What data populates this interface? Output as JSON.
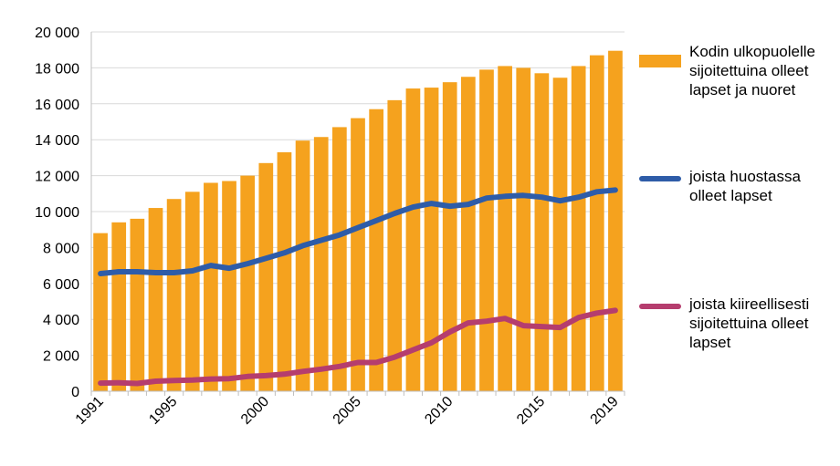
{
  "chart_data": {
    "type": "bar",
    "title": "",
    "xlabel": "",
    "ylabel": "",
    "ylim": [
      0,
      20000
    ],
    "yticks": [
      0,
      2000,
      4000,
      6000,
      8000,
      10000,
      12000,
      14000,
      16000,
      18000,
      20000
    ],
    "ytick_labels": [
      "0",
      "2 000",
      "4 000",
      "6 000",
      "8 000",
      "10 000",
      "12 000",
      "14 000",
      "16 000",
      "18 000",
      "20 000"
    ],
    "categories": [
      1991,
      1992,
      1993,
      1994,
      1995,
      1996,
      1997,
      1998,
      1999,
      2000,
      2001,
      2002,
      2003,
      2004,
      2005,
      2006,
      2007,
      2008,
      2009,
      2010,
      2011,
      2012,
      2013,
      2014,
      2015,
      2016,
      2017,
      2018,
      2019
    ],
    "xtick_labels": [
      "1991",
      "1995",
      "2000",
      "2005",
      "2010",
      "2015",
      "2019"
    ],
    "xtick_years": [
      1991,
      1995,
      2000,
      2005,
      2010,
      2015,
      2019
    ],
    "grid": true,
    "legend_position": "right",
    "series": [
      {
        "name": " Kodin ulkopuolelle sijoitettuina olleet lapset  ja nuoret",
        "type": "bar",
        "color": "#F5A21E",
        "values": [
          8800,
          9400,
          9600,
          10200,
          10700,
          11100,
          11600,
          11700,
          12000,
          12700,
          13300,
          13950,
          14150,
          14700,
          15200,
          15700,
          16200,
          16850,
          16900,
          17200,
          17500,
          17900,
          18100,
          18000,
          17700,
          17450,
          18100,
          18700,
          18950
        ]
      },
      {
        "name": " joista huostassa olleet lapset",
        "type": "line",
        "color": "#2E5CA8",
        "values": [
          6550,
          6650,
          6650,
          6600,
          6600,
          6700,
          7000,
          6850,
          7100,
          7400,
          7700,
          8100,
          8400,
          8700,
          9100,
          9500,
          9900,
          10250,
          10450,
          10300,
          10400,
          10750,
          10850,
          10900,
          10800,
          10600,
          10800,
          11100,
          11200
        ]
      },
      {
        "name": " joista kiireellisesti sijoitettuina olleet lapset",
        "type": "line",
        "color": "#B53D6E",
        "values": [
          450,
          470,
          430,
          560,
          600,
          620,
          680,
          700,
          820,
          870,
          950,
          1100,
          1230,
          1380,
          1600,
          1600,
          1900,
          2300,
          2700,
          3300,
          3800,
          3900,
          4050,
          3650,
          3600,
          3550,
          4100,
          4350,
          4500
        ]
      }
    ]
  }
}
